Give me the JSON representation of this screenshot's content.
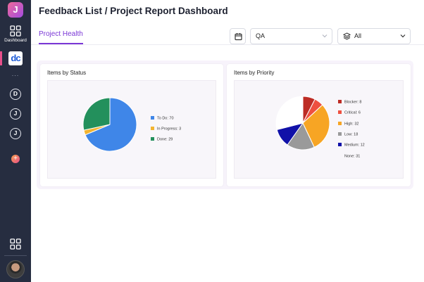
{
  "sidebar": {
    "logo_letter": "J",
    "dashboard_label": "Dashboard",
    "workspace_logo_text": "dc",
    "more_dots": "...",
    "workspaces": [
      "D",
      "J",
      "J"
    ],
    "add_label": "+"
  },
  "page": {
    "title": "Feedback List / Project Report Dashboard",
    "tab_label": "Project Health"
  },
  "filters": {
    "team_value": "QA",
    "scope_value": "All"
  },
  "colors": {
    "accent": "#7a37d6",
    "sidebar_bg": "#262d40"
  },
  "chart_data": [
    {
      "type": "pie",
      "title": "Items by Status",
      "categories": [
        "To Do",
        "In Progress",
        "Done"
      ],
      "values": [
        70,
        3,
        29
      ],
      "colors": [
        "#3f86e8",
        "#f2b431",
        "#23905c"
      ],
      "legend_labels": [
        "To Do: 70",
        "In Progress: 3",
        "Done: 29"
      ],
      "legend": "right"
    },
    {
      "type": "pie",
      "title": "Items by Priority",
      "categories": [
        "Blocker",
        "Critical",
        "High",
        "Low",
        "Medium",
        "None"
      ],
      "values": [
        8,
        6,
        32,
        18,
        12,
        31
      ],
      "colors": [
        "#bd2c25",
        "#ee5040",
        "#f7a524",
        "#9a9a9a",
        "#1111a8",
        "#ffffff"
      ],
      "legend_labels": [
        "Blocker: 8",
        "Critical: 6",
        "High: 32",
        "Low: 18",
        "Medium: 12",
        "None: 31"
      ],
      "legend": "right"
    }
  ]
}
